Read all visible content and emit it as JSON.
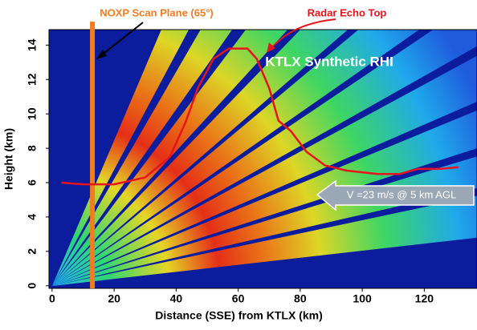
{
  "chart_data": {
    "type": "line",
    "title": "KTLX Synthetic RHI",
    "x_label": "Distance (SSE) from KTLX (km)",
    "y_label": "Height (km)",
    "xlim": [
      -1,
      137
    ],
    "ylim": [
      -0.15,
      14.9
    ],
    "xticks": [
      0,
      20,
      40,
      60,
      80,
      100,
      120
    ],
    "yticks": [
      0,
      2,
      4,
      6,
      8,
      10,
      12,
      14
    ],
    "series": [
      {
        "name": "Radar Echo Top",
        "color": "#e8141c",
        "x": [
          3,
          10,
          20,
          30,
          38,
          43,
          47,
          52,
          57,
          63,
          66,
          70,
          73,
          77,
          82,
          88,
          95,
          105,
          112,
          118,
          125,
          131
        ],
        "values": [
          6.0,
          5.9,
          5.9,
          6.3,
          7.5,
          9.5,
          11.5,
          13.2,
          13.8,
          13.8,
          13.2,
          11.5,
          9.6,
          9.0,
          7.8,
          7.0,
          6.7,
          6.5,
          6.5,
          6.8,
          6.8,
          6.9
        ]
      }
    ],
    "scan_plane": {
      "label": "NOXP Scan Plane (65°)",
      "x": 13,
      "color": "#f47c20"
    },
    "annotation": "V =23 m/s @ 5 km AGL"
  }
}
